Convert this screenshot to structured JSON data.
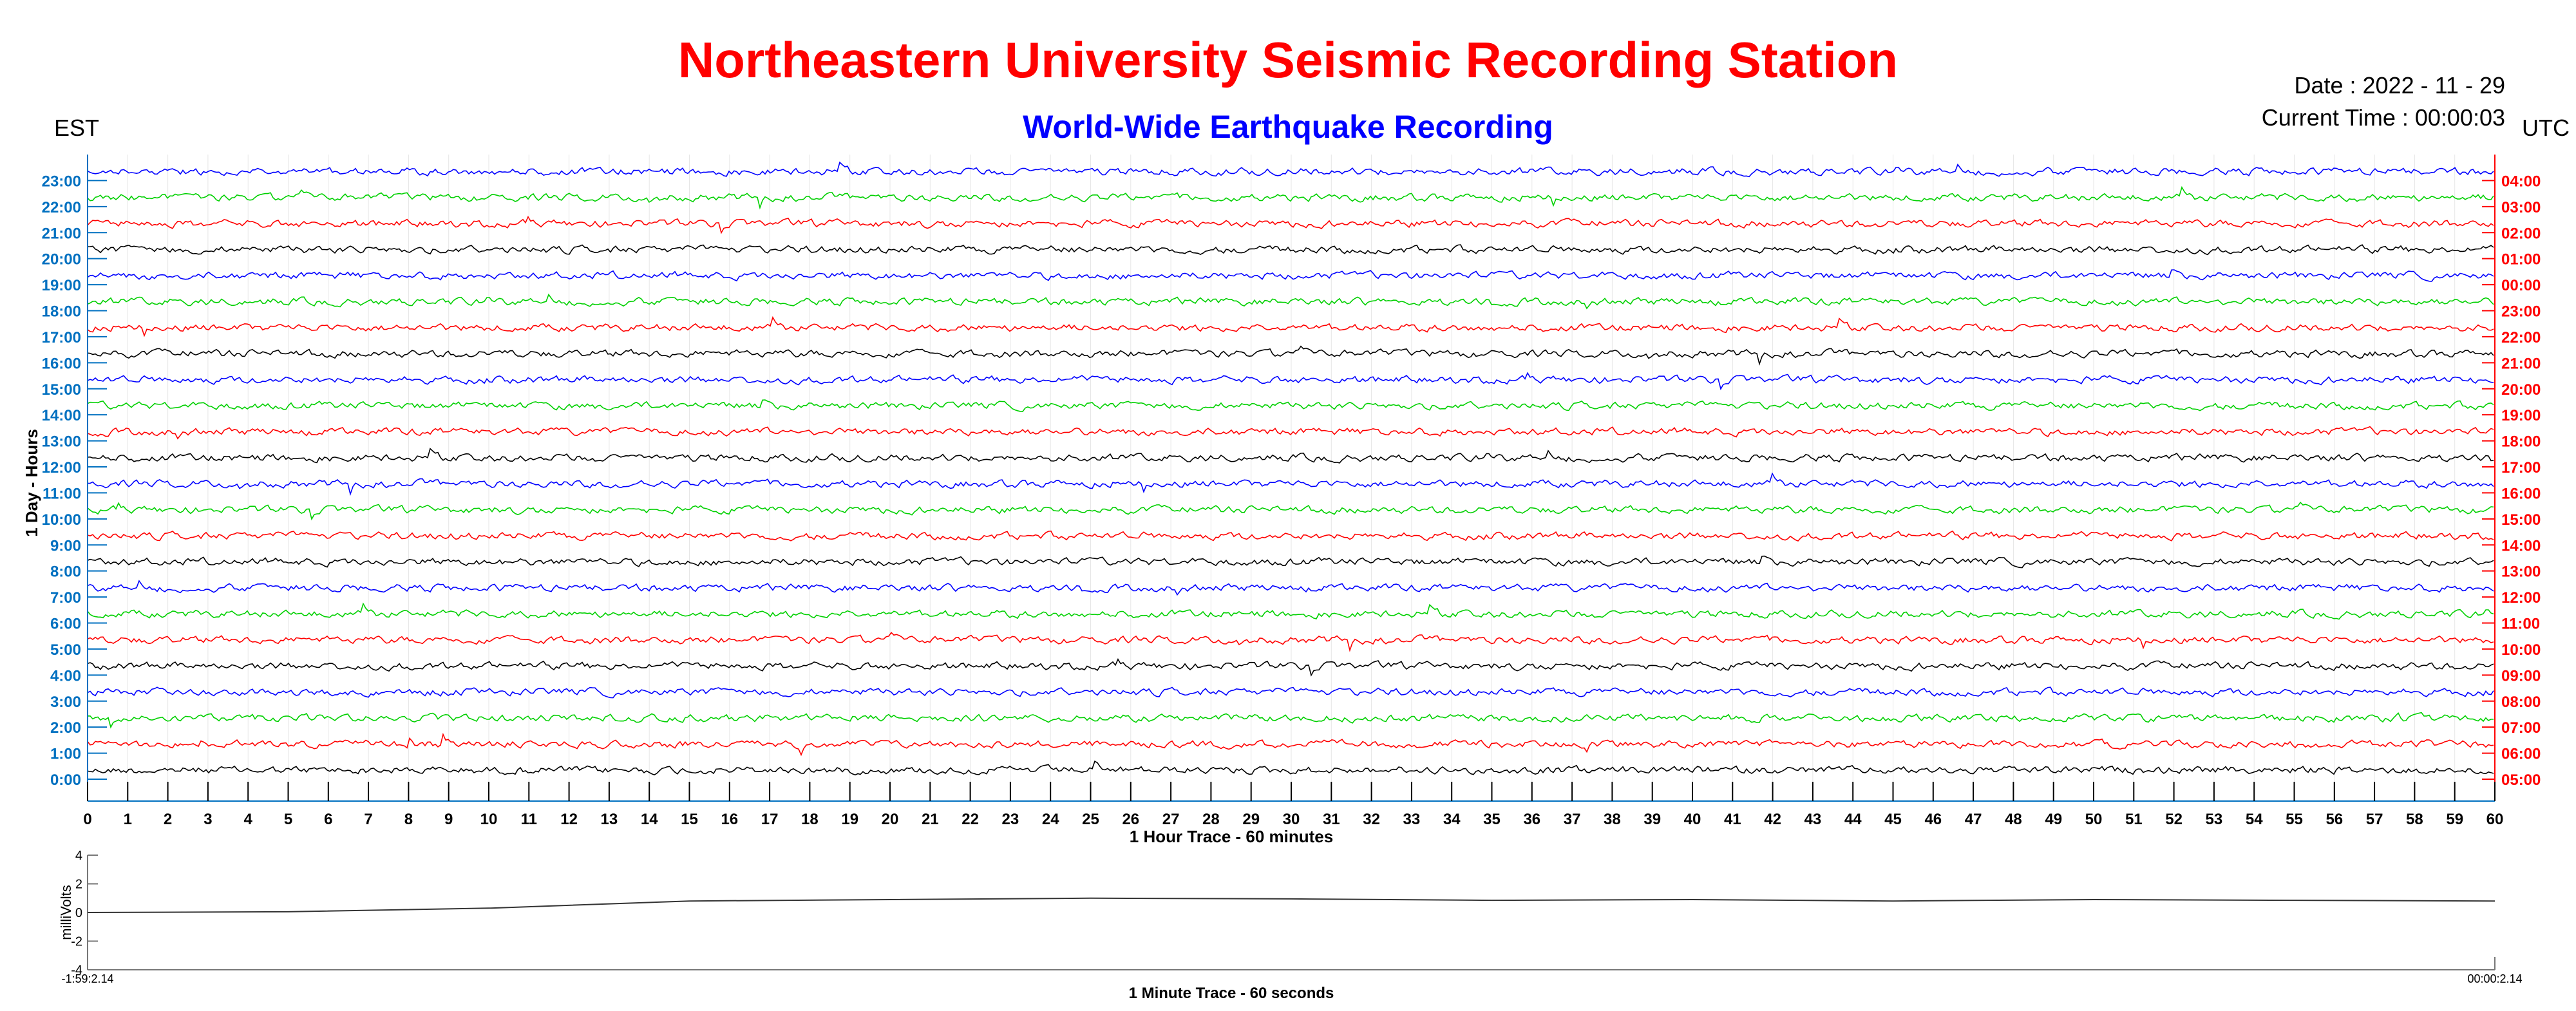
{
  "header": {
    "title": "Northeastern University Seismic Recording Station",
    "subtitle": "World-Wide Earthquake Recording",
    "date": "Date : 2022 - 11 - 29",
    "current_time": "Current Time : 00:00:03",
    "left_timezone": "EST",
    "right_timezone": "UTC"
  },
  "colors": {
    "title": "#ff0000",
    "subtitle": "#0000ff",
    "est_labels": "#0070c0",
    "utc_labels": "#ff0000",
    "trace_cycle": [
      "#000000",
      "#ff0000",
      "#00d000",
      "#0000ff"
    ],
    "axis": "#0070c0"
  },
  "chart_data": [
    {
      "type": "line",
      "title": "",
      "xlabel": "1 Hour Trace - 60 minutes",
      "ylabel": "1 Day - Hours",
      "xlim": [
        0,
        60
      ],
      "x_ticks": [
        "0",
        "1",
        "2",
        "3",
        "4",
        "5",
        "6",
        "7",
        "8",
        "9",
        "10",
        "11",
        "12",
        "13",
        "14",
        "15",
        "16",
        "17",
        "18",
        "19",
        "20",
        "21",
        "22",
        "23",
        "24",
        "25",
        "26",
        "27",
        "28",
        "29",
        "30",
        "31",
        "32",
        "33",
        "34",
        "35",
        "36",
        "37",
        "38",
        "39",
        "40",
        "41",
        "42",
        "43",
        "44",
        "45",
        "46",
        "47",
        "48",
        "49",
        "50",
        "51",
        "52",
        "53",
        "54",
        "55",
        "56",
        "57",
        "58",
        "59",
        "60"
      ],
      "est_hours": [
        "0:00",
        "1:00",
        "2:00",
        "3:00",
        "4:00",
        "5:00",
        "6:00",
        "7:00",
        "8:00",
        "9:00",
        "10:00",
        "11:00",
        "12:00",
        "13:00",
        "14:00",
        "15:00",
        "16:00",
        "17:00",
        "18:00",
        "19:00",
        "20:00",
        "21:00",
        "22:00",
        "23:00"
      ],
      "utc_hours": [
        "05:00",
        "06:00",
        "07:00",
        "08:00",
        "09:00",
        "10:00",
        "11:00",
        "12:00",
        "13:00",
        "14:00",
        "15:00",
        "16:00",
        "17:00",
        "18:00",
        "19:00",
        "20:00",
        "21:00",
        "22:00",
        "23:00",
        "00:00",
        "01:00",
        "02:00",
        "03:00",
        "04:00"
      ],
      "grid": true
    },
    {
      "type": "line",
      "title": "",
      "xlabel": "1 Minute Trace  - 60 seconds",
      "ylabel": "milliVolts",
      "ylim": [
        -4,
        4
      ],
      "y_ticks": [
        "4",
        "2",
        "0",
        "-2",
        "-4"
      ],
      "x_start_label": "-1:59:2.14",
      "x_end_label": "00:00:2.14",
      "series": [
        {
          "x": [
            0,
            5,
            10,
            15,
            20,
            25,
            30,
            35,
            40,
            45,
            50,
            55,
            60
          ],
          "values": [
            0.0,
            0.05,
            0.3,
            0.8,
            0.9,
            1.0,
            0.95,
            0.85,
            0.9,
            0.8,
            0.9,
            0.85,
            0.8
          ]
        }
      ]
    }
  ]
}
